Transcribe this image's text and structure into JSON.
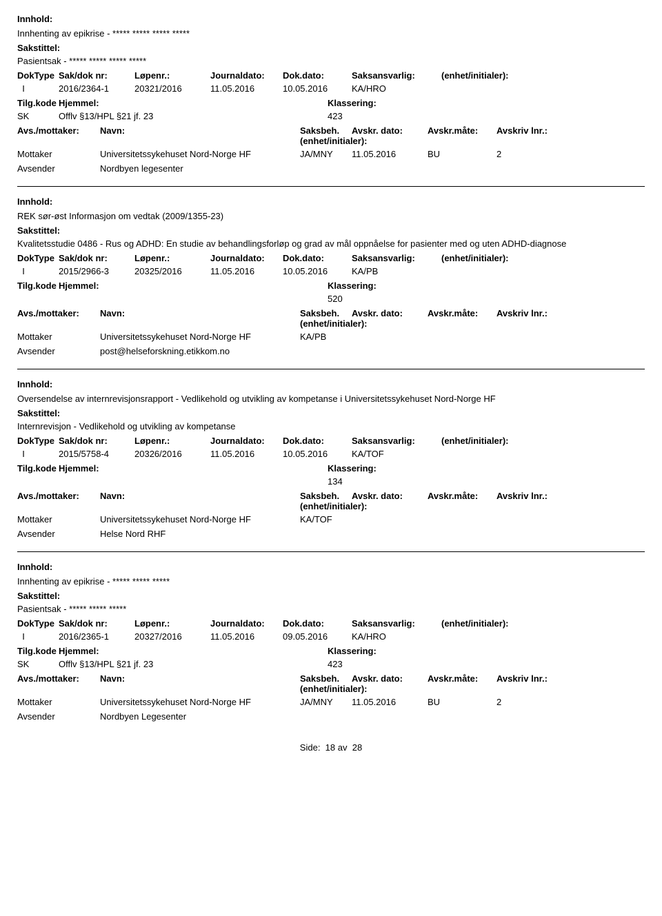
{
  "labels": {
    "innhold": "Innhold:",
    "sakstittel": "Sakstittel:",
    "doktype": "DokType",
    "sakdok": "Sak/dok nr:",
    "lopenr": "Løpenr.:",
    "journaldato": "Journaldato:",
    "dokdato": "Dok.dato:",
    "saksansvarlig": "Saksansvarlig:",
    "enhet": "(enhet/initialer):",
    "tilgkode": "Tilg.kode",
    "hjemmel": "Hjemmel:",
    "klassering": "Klassering:",
    "avsmottaker": "Avs./mottaker:",
    "navn": "Navn:",
    "saksbeh": "Saksbeh.",
    "saksbeh_enh": "(enhet/initialer):",
    "avskrdato": "Avskr. dato:",
    "avskrmate": "Avskr.måte:",
    "avskrlnr": "Avskriv lnr.:",
    "mottaker": "Mottaker",
    "avsender": "Avsender",
    "side": "Side:",
    "av": "av"
  },
  "records": [
    {
      "innhold": "Innhenting av epikrise - ***** ***** ***** *****",
      "sakstittel": "Pasientsak - ***** ***** ***** *****",
      "doktype": "I",
      "sakdok": "2016/2364-1",
      "lopenr": "20321/2016",
      "jdato": "11.05.2016",
      "ddato": "10.05.2016",
      "saksansv": "KA/HRO",
      "tilgkode": "SK",
      "hjemmel": "Offlv §13/HPL §21 jf. 23",
      "klassering": "423",
      "mottaker_navn": "Universitetssykehuset Nord-Norge HF",
      "mottaker_saksbeh": "JA/MNY",
      "avskrdato": "11.05.2016",
      "avskrmate": "BU",
      "avskrlnr": "2",
      "avsender_navn": "Nordbyen legesenter"
    },
    {
      "innhold": "REK sør-øst Informasjon om vedtak (2009/1355-23)",
      "sakstittel": "Kvalitetsstudie 0486 - Rus og ADHD: En studie av behandlingsforløp og grad av mål oppnåelse for pasienter med og uten ADHD-diagnose",
      "doktype": "I",
      "sakdok": "2015/2966-3",
      "lopenr": "20325/2016",
      "jdato": "11.05.2016",
      "ddato": "10.05.2016",
      "saksansv": "KA/PB",
      "tilgkode": "",
      "hjemmel": "",
      "klassering": "520",
      "mottaker_navn": "Universitetssykehuset Nord-Norge HF",
      "mottaker_saksbeh": "KA/PB",
      "avskrdato": "",
      "avskrmate": "",
      "avskrlnr": "",
      "avsender_navn": "post@helseforskning.etikkom.no"
    },
    {
      "innhold": "Oversendelse av internrevisjonsrapport - Vedlikehold og utvikling av kompetanse i Universitetssykehuset Nord-Norge HF",
      "sakstittel": "Internrevisjon - Vedlikehold og utvikling av kompetanse",
      "doktype": "I",
      "sakdok": "2015/5758-4",
      "lopenr": "20326/2016",
      "jdato": "11.05.2016",
      "ddato": "10.05.2016",
      "saksansv": "KA/TOF",
      "tilgkode": "",
      "hjemmel": "",
      "klassering": "134",
      "mottaker_navn": "Universitetssykehuset Nord-Norge HF",
      "mottaker_saksbeh": "KA/TOF",
      "avskrdato": "",
      "avskrmate": "",
      "avskrlnr": "",
      "avsender_navn": "Helse Nord RHF"
    },
    {
      "innhold": "Innhenting av epikrise - ***** ***** *****",
      "sakstittel": "Pasientsak - ***** ***** *****",
      "doktype": "I",
      "sakdok": "2016/2365-1",
      "lopenr": "20327/2016",
      "jdato": "11.05.2016",
      "ddato": "09.05.2016",
      "saksansv": "KA/HRO",
      "tilgkode": "SK",
      "hjemmel": "Offlv §13/HPL §21 jf. 23",
      "klassering": "423",
      "mottaker_navn": "Universitetssykehuset Nord-Norge HF",
      "mottaker_saksbeh": "JA/MNY",
      "avskrdato": "11.05.2016",
      "avskrmate": "BU",
      "avskrlnr": "2",
      "avsender_navn": "Nordbyen Legesenter"
    }
  ],
  "footer": {
    "page": "18",
    "total": "28"
  }
}
